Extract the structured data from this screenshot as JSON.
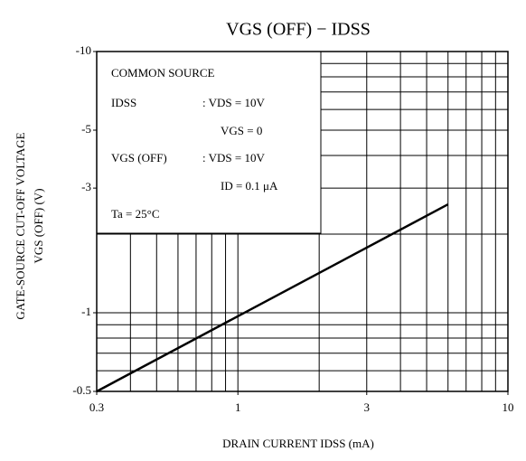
{
  "chart_data": {
    "type": "line",
    "title": "VGS (OFF) − IDSS",
    "xlabel": "DRAIN CURRENT  IDSS  (mA)",
    "ylabel": [
      "GATE-SOURCE CUT-OFF VOLTAGE",
      "VGS (OFF)  (V)"
    ],
    "xscale": "log",
    "yscale": "log",
    "xlim": [
      0.3,
      10
    ],
    "ylim": [
      -0.5,
      -10
    ],
    "xticks": [
      0.3,
      1,
      3,
      10
    ],
    "yticks": [
      -0.5,
      -1,
      -3,
      -5,
      -10
    ],
    "xgrid": [
      0.4,
      0.5,
      0.6,
      0.7,
      0.8,
      0.9,
      1,
      2,
      3,
      4,
      5,
      6,
      7,
      8,
      9
    ],
    "ygrid": [
      -0.6,
      -0.7,
      -0.8,
      -0.9,
      -1,
      -2,
      -3,
      -4,
      -5,
      -6,
      -7,
      -8,
      -9
    ],
    "grid": true,
    "series": [
      {
        "color": "#000000",
        "x": [
          0.3,
          6
        ],
        "values": [
          -0.5,
          -2.6
        ]
      }
    ],
    "annotations": [
      "COMMON SOURCE",
      "IDSS",
      ":  VDS = 10V",
      "VGS = 0",
      "VGS (OFF)",
      ":  VDS = 10V",
      "ID = 0.1 μA",
      "Ta = 25°C"
    ]
  }
}
